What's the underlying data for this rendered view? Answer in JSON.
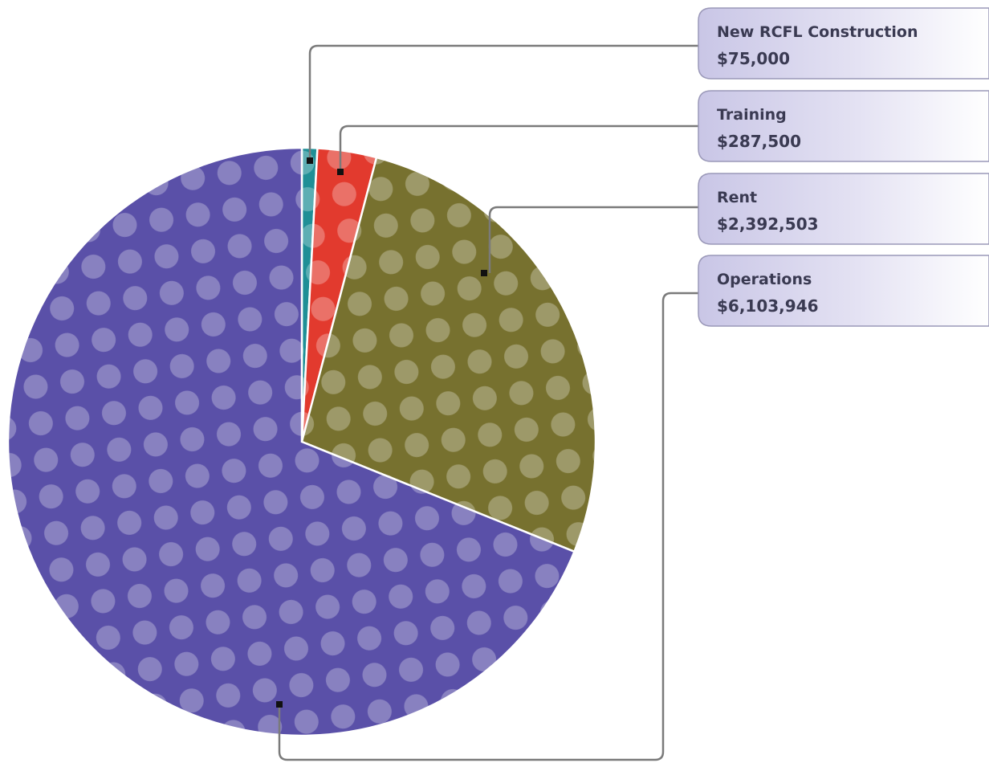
{
  "chart_data": {
    "type": "pie",
    "categories": [
      "New RCFL Construction",
      "Training",
      "Rent",
      "Operations"
    ],
    "values": [
      75000,
      287500,
      2392503,
      6103946
    ],
    "value_labels": [
      "$75,000",
      "$287,500",
      "$2,392,503",
      "$6,103,946"
    ],
    "colors": [
      "#1f8f96",
      "#e23a2e",
      "#77712f",
      "#5a50a8"
    ]
  }
}
